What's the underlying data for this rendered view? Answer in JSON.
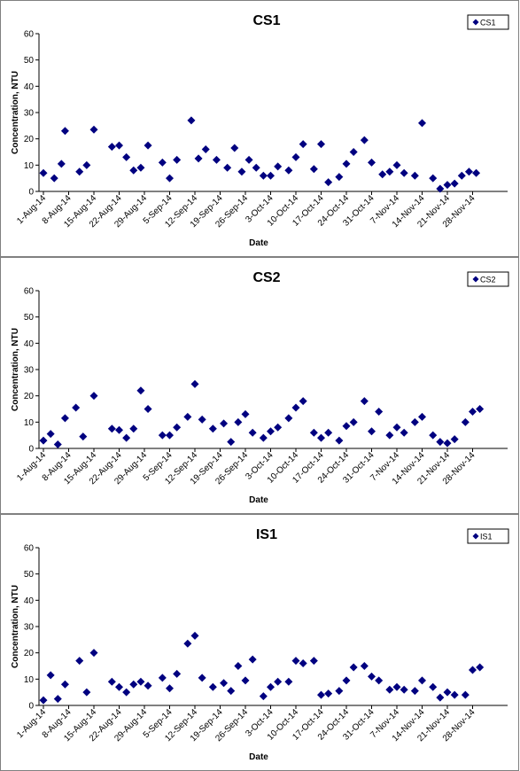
{
  "chart_data": [
    {
      "type": "scatter",
      "title": "CS1",
      "xlabel": "Date",
      "ylabel": "Concentration, NTU",
      "ylim": [
        0,
        60
      ],
      "yticks": [
        0,
        10,
        20,
        30,
        40,
        50,
        60
      ],
      "xticks": [
        "1-Aug-14",
        "8-Aug-14",
        "15-Aug-14",
        "22-Aug-14",
        "29-Aug-14",
        "5-Sep-14",
        "12-Sep-14",
        "19-Sep-14",
        "26-Sep-14",
        "3-Oct-14",
        "10-Oct-14",
        "17-Oct-14",
        "24-Oct-14",
        "31-Oct-14",
        "7-Nov-14",
        "14-Nov-14",
        "21-Nov-14",
        "28-Nov-14"
      ],
      "legend": "top-right",
      "marker_color": "#000080",
      "series": [
        {
          "name": "CS1",
          "points": [
            {
              "x": "2014-08-01",
              "y": 7
            },
            {
              "x": "2014-08-04",
              "y": 5
            },
            {
              "x": "2014-08-06",
              "y": 10.5
            },
            {
              "x": "2014-08-07",
              "y": 23
            },
            {
              "x": "2014-08-11",
              "y": 7.5
            },
            {
              "x": "2014-08-13",
              "y": 10
            },
            {
              "x": "2014-08-15",
              "y": 23.5
            },
            {
              "x": "2014-08-20",
              "y": 17
            },
            {
              "x": "2014-08-22",
              "y": 17.5
            },
            {
              "x": "2014-08-24",
              "y": 13
            },
            {
              "x": "2014-08-26",
              "y": 8
            },
            {
              "x": "2014-08-28",
              "y": 9
            },
            {
              "x": "2014-08-30",
              "y": 17.5
            },
            {
              "x": "2014-09-03",
              "y": 11
            },
            {
              "x": "2014-09-05",
              "y": 5
            },
            {
              "x": "2014-09-07",
              "y": 12
            },
            {
              "x": "2014-09-11",
              "y": 27
            },
            {
              "x": "2014-09-13",
              "y": 12.5
            },
            {
              "x": "2014-09-15",
              "y": 16
            },
            {
              "x": "2014-09-18",
              "y": 12
            },
            {
              "x": "2014-09-21",
              "y": 9
            },
            {
              "x": "2014-09-23",
              "y": 16.5
            },
            {
              "x": "2014-09-25",
              "y": 7.5
            },
            {
              "x": "2014-09-27",
              "y": 12
            },
            {
              "x": "2014-09-29",
              "y": 9
            },
            {
              "x": "2014-10-01",
              "y": 6
            },
            {
              "x": "2014-10-03",
              "y": 6
            },
            {
              "x": "2014-10-05",
              "y": 9.5
            },
            {
              "x": "2014-10-08",
              "y": 8
            },
            {
              "x": "2014-10-10",
              "y": 13
            },
            {
              "x": "2014-10-12",
              "y": 18
            },
            {
              "x": "2014-10-15",
              "y": 8.5
            },
            {
              "x": "2014-10-17",
              "y": 18
            },
            {
              "x": "2014-10-19",
              "y": 3.5
            },
            {
              "x": "2014-10-22",
              "y": 5.5
            },
            {
              "x": "2014-10-24",
              "y": 10.5
            },
            {
              "x": "2014-10-26",
              "y": 15
            },
            {
              "x": "2014-10-29",
              "y": 19.5
            },
            {
              "x": "2014-10-31",
              "y": 11
            },
            {
              "x": "2014-11-03",
              "y": 6.5
            },
            {
              "x": "2014-11-05",
              "y": 7.5
            },
            {
              "x": "2014-11-07",
              "y": 10
            },
            {
              "x": "2014-11-09",
              "y": 7
            },
            {
              "x": "2014-11-12",
              "y": 6
            },
            {
              "x": "2014-11-14",
              "y": 26
            },
            {
              "x": "2014-11-17",
              "y": 5
            },
            {
              "x": "2014-11-19",
              "y": 1
            },
            {
              "x": "2014-11-21",
              "y": 2.5
            },
            {
              "x": "2014-11-23",
              "y": 3
            },
            {
              "x": "2014-11-25",
              "y": 6
            },
            {
              "x": "2014-11-27",
              "y": 7.5
            },
            {
              "x": "2014-11-29",
              "y": 7
            }
          ]
        }
      ]
    },
    {
      "type": "scatter",
      "title": "CS2",
      "xlabel": "Date",
      "ylabel": "Concentration, NTU",
      "ylim": [
        0,
        60
      ],
      "yticks": [
        0,
        10,
        20,
        30,
        40,
        50,
        60
      ],
      "xticks": [
        "1-Aug-14",
        "8-Aug-14",
        "15-Aug-14",
        "22-Aug-14",
        "29-Aug-14",
        "5-Sep-14",
        "12-Sep-14",
        "19-Sep-14",
        "26-Sep-14",
        "3-Oct-14",
        "10-Oct-14",
        "17-Oct-14",
        "24-Oct-14",
        "31-Oct-14",
        "7-Nov-14",
        "14-Nov-14",
        "21-Nov-14",
        "28-Nov-14"
      ],
      "legend": "top-right",
      "marker_color": "#000080",
      "series": [
        {
          "name": "CS2",
          "points": [
            {
              "x": "2014-08-01",
              "y": 3
            },
            {
              "x": "2014-08-03",
              "y": 5.5
            },
            {
              "x": "2014-08-05",
              "y": 1.5
            },
            {
              "x": "2014-08-07",
              "y": 11.5
            },
            {
              "x": "2014-08-10",
              "y": 15.5
            },
            {
              "x": "2014-08-12",
              "y": 4.5
            },
            {
              "x": "2014-08-15",
              "y": 20
            },
            {
              "x": "2014-08-20",
              "y": 7.5
            },
            {
              "x": "2014-08-22",
              "y": 7
            },
            {
              "x": "2014-08-24",
              "y": 4
            },
            {
              "x": "2014-08-26",
              "y": 7.5
            },
            {
              "x": "2014-08-28",
              "y": 22
            },
            {
              "x": "2014-08-30",
              "y": 15
            },
            {
              "x": "2014-09-03",
              "y": 5
            },
            {
              "x": "2014-09-05",
              "y": 5
            },
            {
              "x": "2014-09-07",
              "y": 8
            },
            {
              "x": "2014-09-10",
              "y": 12
            },
            {
              "x": "2014-09-12",
              "y": 24.5
            },
            {
              "x": "2014-09-14",
              "y": 11
            },
            {
              "x": "2014-09-17",
              "y": 7.5
            },
            {
              "x": "2014-09-20",
              "y": 9.5
            },
            {
              "x": "2014-09-22",
              "y": 2.5
            },
            {
              "x": "2014-09-24",
              "y": 10
            },
            {
              "x": "2014-09-26",
              "y": 13
            },
            {
              "x": "2014-09-28",
              "y": 6
            },
            {
              "x": "2014-10-01",
              "y": 4
            },
            {
              "x": "2014-10-03",
              "y": 6.5
            },
            {
              "x": "2014-10-05",
              "y": 8
            },
            {
              "x": "2014-10-08",
              "y": 11.5
            },
            {
              "x": "2014-10-10",
              "y": 15.5
            },
            {
              "x": "2014-10-12",
              "y": 18
            },
            {
              "x": "2014-10-15",
              "y": 6
            },
            {
              "x": "2014-10-17",
              "y": 4
            },
            {
              "x": "2014-10-19",
              "y": 6
            },
            {
              "x": "2014-10-22",
              "y": 3
            },
            {
              "x": "2014-10-24",
              "y": 8.5
            },
            {
              "x": "2014-10-26",
              "y": 10
            },
            {
              "x": "2014-10-29",
              "y": 18
            },
            {
              "x": "2014-10-31",
              "y": 6.5
            },
            {
              "x": "2014-11-02",
              "y": 14
            },
            {
              "x": "2014-11-05",
              "y": 5
            },
            {
              "x": "2014-11-07",
              "y": 8
            },
            {
              "x": "2014-11-09",
              "y": 6
            },
            {
              "x": "2014-11-12",
              "y": 10
            },
            {
              "x": "2014-11-14",
              "y": 12
            },
            {
              "x": "2014-11-17",
              "y": 5
            },
            {
              "x": "2014-11-19",
              "y": 2.5
            },
            {
              "x": "2014-11-21",
              "y": 2
            },
            {
              "x": "2014-11-23",
              "y": 3.5
            },
            {
              "x": "2014-11-26",
              "y": 10
            },
            {
              "x": "2014-11-28",
              "y": 14
            },
            {
              "x": "2014-11-30",
              "y": 15
            }
          ]
        }
      ]
    },
    {
      "type": "scatter",
      "title": "IS1",
      "xlabel": "Date",
      "ylabel": "Concentration, NTU",
      "ylim": [
        0,
        60
      ],
      "yticks": [
        0,
        10,
        20,
        30,
        40,
        50,
        60
      ],
      "xticks": [
        "1-Aug-14",
        "8-Aug-14",
        "15-Aug-14",
        "22-Aug-14",
        "29-Aug-14",
        "5-Sep-14",
        "12-Sep-14",
        "19-Sep-14",
        "26-Sep-14",
        "3-Oct-14",
        "10-Oct-14",
        "17-Oct-14",
        "24-Oct-14",
        "31-Oct-14",
        "7-Nov-14",
        "14-Nov-14",
        "21-Nov-14",
        "28-Nov-14"
      ],
      "legend": "top-right",
      "marker_color": "#000080",
      "series": [
        {
          "name": "IS1",
          "points": [
            {
              "x": "2014-08-01",
              "y": 2
            },
            {
              "x": "2014-08-03",
              "y": 11.5
            },
            {
              "x": "2014-08-05",
              "y": 2.5
            },
            {
              "x": "2014-08-07",
              "y": 8
            },
            {
              "x": "2014-08-11",
              "y": 17
            },
            {
              "x": "2014-08-13",
              "y": 5
            },
            {
              "x": "2014-08-15",
              "y": 20
            },
            {
              "x": "2014-08-20",
              "y": 9
            },
            {
              "x": "2014-08-22",
              "y": 7
            },
            {
              "x": "2014-08-24",
              "y": 5
            },
            {
              "x": "2014-08-26",
              "y": 8
            },
            {
              "x": "2014-08-28",
              "y": 9
            },
            {
              "x": "2014-08-30",
              "y": 7.5
            },
            {
              "x": "2014-09-03",
              "y": 10.5
            },
            {
              "x": "2014-09-05",
              "y": 6.5
            },
            {
              "x": "2014-09-07",
              "y": 12
            },
            {
              "x": "2014-09-10",
              "y": 23.5
            },
            {
              "x": "2014-09-12",
              "y": 26.5
            },
            {
              "x": "2014-09-14",
              "y": 10.5
            },
            {
              "x": "2014-09-17",
              "y": 7
            },
            {
              "x": "2014-09-20",
              "y": 8.5
            },
            {
              "x": "2014-09-22",
              "y": 5.5
            },
            {
              "x": "2014-09-24",
              "y": 15
            },
            {
              "x": "2014-09-26",
              "y": 9.5
            },
            {
              "x": "2014-09-28",
              "y": 17.5
            },
            {
              "x": "2014-10-01",
              "y": 3.5
            },
            {
              "x": "2014-10-03",
              "y": 7
            },
            {
              "x": "2014-10-05",
              "y": 9
            },
            {
              "x": "2014-10-08",
              "y": 9
            },
            {
              "x": "2014-10-10",
              "y": 17
            },
            {
              "x": "2014-10-12",
              "y": 16
            },
            {
              "x": "2014-10-15",
              "y": 17
            },
            {
              "x": "2014-10-17",
              "y": 4
            },
            {
              "x": "2014-10-19",
              "y": 4.5
            },
            {
              "x": "2014-10-22",
              "y": 5.5
            },
            {
              "x": "2014-10-24",
              "y": 9.5
            },
            {
              "x": "2014-10-26",
              "y": 14.5
            },
            {
              "x": "2014-10-29",
              "y": 15
            },
            {
              "x": "2014-10-31",
              "y": 11
            },
            {
              "x": "2014-11-02",
              "y": 9.5
            },
            {
              "x": "2014-11-05",
              "y": 6
            },
            {
              "x": "2014-11-07",
              "y": 7
            },
            {
              "x": "2014-11-09",
              "y": 6
            },
            {
              "x": "2014-11-12",
              "y": 5.5
            },
            {
              "x": "2014-11-14",
              "y": 9.5
            },
            {
              "x": "2014-11-17",
              "y": 7
            },
            {
              "x": "2014-11-19",
              "y": 3
            },
            {
              "x": "2014-11-21",
              "y": 5
            },
            {
              "x": "2014-11-23",
              "y": 4
            },
            {
              "x": "2014-11-26",
              "y": 4
            },
            {
              "x": "2014-11-28",
              "y": 13.5
            },
            {
              "x": "2014-11-30",
              "y": 14.5
            }
          ]
        }
      ]
    }
  ]
}
